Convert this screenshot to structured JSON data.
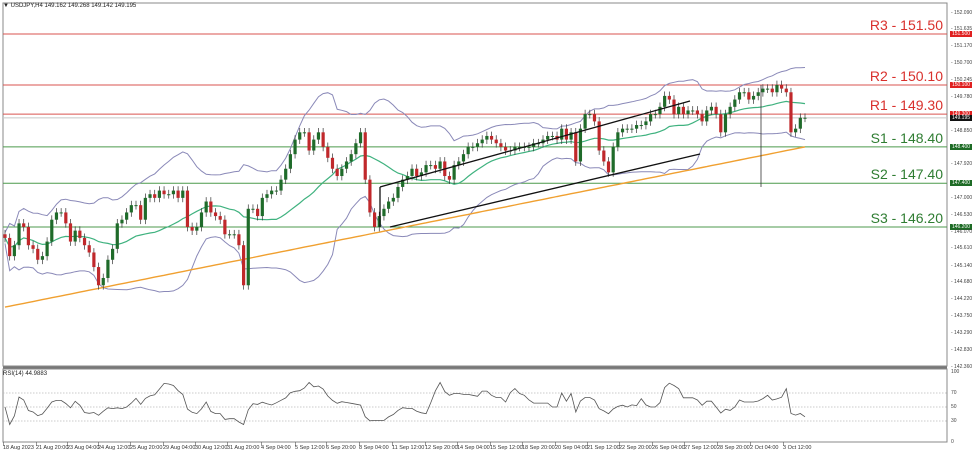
{
  "header": {
    "symbol": "USDJPY,H4",
    "ohlc": "149.162 149.268 149.142 149.195",
    "title_full": "▼ USDJPY,H4  149.162 149.268 149.142 149.195"
  },
  "rsi": {
    "title": "RSI(14) 44.9883",
    "axis_ticks": [
      "100",
      "70",
      "50",
      "30",
      "0"
    ]
  },
  "colors": {
    "bull": "#1f6b2a",
    "bear": "#c0282b",
    "resistance": "#d9534f",
    "support": "#4c9a4c",
    "sma_fast": "#3fb27f",
    "sma_slow": "#f0a030",
    "bollinger": "#8a89b8",
    "channel": "#111111"
  },
  "chart_data": {
    "type": "candlestick",
    "title": "USDJPY,H4",
    "xlabel": "",
    "ylabel": "",
    "ylim": [
      142.36,
      152.09
    ],
    "y_ticks": [
      "152.090",
      "151.635",
      "151.170",
      "150.700",
      "150.245",
      "149.780",
      "148.850",
      "147.920",
      "147.000",
      "146.530",
      "146.070",
      "145.610",
      "145.140",
      "144.680",
      "144.220",
      "143.750",
      "143.290",
      "142.830",
      "142.360"
    ],
    "x_ticks": [
      "18 Aug 2023",
      "21 Aug 20:00",
      "23 Aug 04:00",
      "24 Aug 12:00",
      "25 Aug 20:00",
      "29 Aug 04:00",
      "30 Aug 12:00",
      "31 Aug 20:00",
      "4 Sep 04:00",
      "5 Sep 12:00",
      "6 Sep 20:00",
      "8 Sep 04:00",
      "11 Sep 12:00",
      "12 Sep 20:00",
      "14 Sep 04:00",
      "15 Sep 12:00",
      "18 Sep 20:00",
      "20 Sep 04:00",
      "21 Sep 12:00",
      "22 Sep 20:00",
      "26 Sep 04:00",
      "27 Sep 12:00",
      "28 Sep 20:00",
      "2 Oct 04:00",
      "3 Oct 12:00"
    ],
    "levels": [
      {
        "name": "R3",
        "label": "R3 - 151.50",
        "value": 151.5,
        "tag": "151.500",
        "kind": "resistance"
      },
      {
        "name": "R2",
        "label": "R2 - 150.10",
        "value": 150.1,
        "tag": "150.100",
        "kind": "resistance"
      },
      {
        "name": "R1",
        "label": "R1 - 149.30",
        "value": 149.3,
        "tag": "149.300",
        "kind": "resistance"
      },
      {
        "name": "S1",
        "label": "S1 - 148.40",
        "value": 148.4,
        "tag": "148.400",
        "kind": "support"
      },
      {
        "name": "S2",
        "label": "S2 - 147.40",
        "value": 147.4,
        "tag": "147.400",
        "kind": "support"
      },
      {
        "name": "S3",
        "label": "S3 - 146.20",
        "value": 146.2,
        "tag": "146.200",
        "kind": "support"
      }
    ],
    "current_price": {
      "value": 149.195,
      "tag": "149.195"
    },
    "indicators": [
      "Bollinger Bands",
      "SMA (green)",
      "SMA (orange)",
      "Ascending channel",
      "RSI(14)"
    ],
    "rsi_levels": [
      70,
      50,
      30
    ],
    "rsi_value": 44.9883,
    "closes_approx": [
      145.9,
      145.4,
      145.7,
      146.3,
      146.2,
      145.7,
      145.6,
      145.3,
      145.4,
      145.8,
      146.4,
      146.6,
      146.6,
      146.3,
      145.8,
      146.1,
      145.9,
      145.7,
      145.5,
      145.1,
      144.6,
      144.8,
      145.3,
      145.6,
      146.3,
      146.4,
      146.6,
      146.8,
      146.8,
      146.4,
      147.0,
      147.1,
      147.0,
      147.2,
      147.1,
      147.1,
      147.2,
      147.0,
      147.2,
      146.2,
      146.1,
      146.2,
      146.6,
      146.9,
      146.6,
      146.5,
      146.4,
      146.0,
      146.0,
      146.0,
      145.7,
      144.6,
      146.7,
      146.7,
      146.5,
      147.0,
      147.1,
      147.2,
      147.2,
      147.5,
      147.8,
      148.2,
      148.6,
      148.8,
      148.8,
      148.3,
      148.6,
      148.8,
      148.4,
      148.1,
      147.8,
      147.6,
      147.8,
      148.0,
      148.2,
      148.5,
      148.8,
      147.5,
      146.6,
      146.2,
      146.5,
      146.7,
      146.9,
      147.0,
      147.3,
      147.5,
      147.6,
      147.8,
      147.6,
      147.7,
      147.9,
      147.9,
      147.8,
      148.0,
      147.6,
      147.5,
      147.9,
      148.0,
      148.2,
      148.4,
      148.4,
      148.5,
      148.6,
      148.7,
      148.6,
      148.5,
      148.4,
      148.3,
      148.3,
      148.4,
      148.4,
      148.4,
      148.4,
      148.5,
      148.5,
      148.6,
      148.7,
      148.7,
      148.6,
      148.9,
      148.6,
      148.8,
      148.0,
      148.9,
      149.3,
      149.3,
      149.1,
      148.3,
      148.0,
      147.7,
      148.4,
      148.8,
      148.9,
      148.9,
      148.9,
      149.0,
      149.0,
      149.1,
      149.3,
      149.3,
      149.5,
      149.8,
      149.7,
      149.3,
      149.5,
      149.3,
      149.4,
      149.4,
      149.3,
      149.1,
      149.4,
      149.5,
      149.3,
      148.8,
      149.3,
      149.5,
      149.7,
      149.9,
      149.9,
      149.7,
      149.8,
      149.9,
      150.0,
      150.0,
      149.9,
      150.1,
      150.0,
      149.9,
      148.8,
      148.9,
      149.2,
      149.2
    ]
  }
}
